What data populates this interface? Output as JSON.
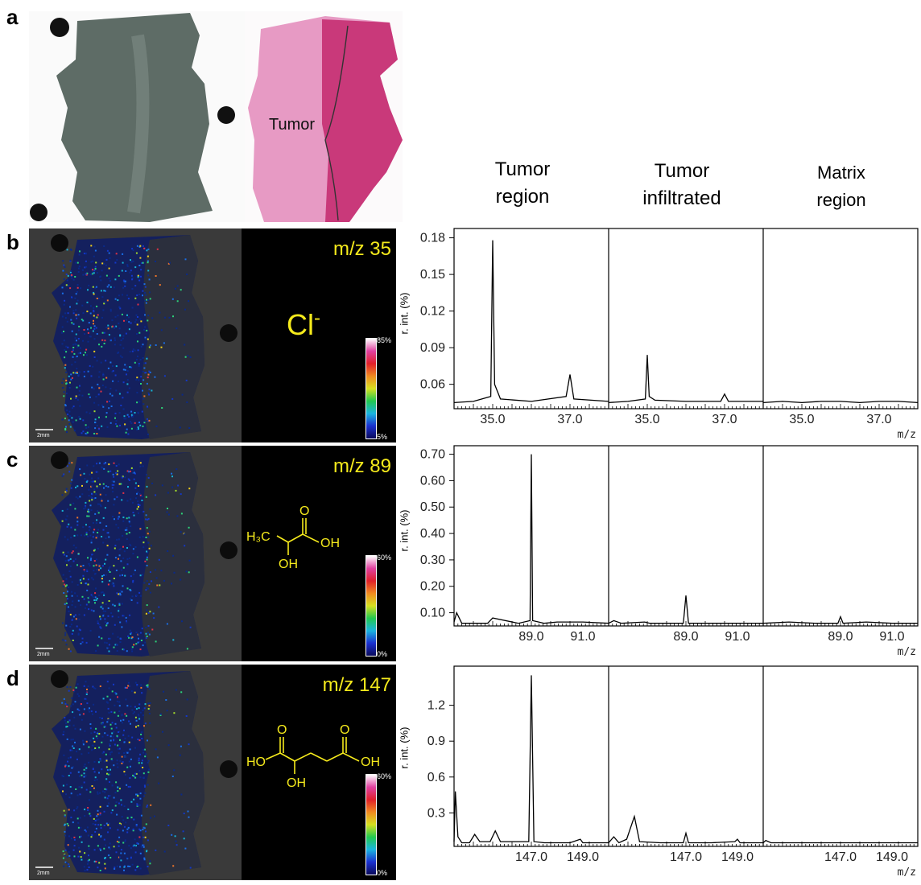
{
  "panel_letters": [
    "a",
    "b",
    "c",
    "d"
  ],
  "tissue_label": "Tumor",
  "column_headers": [
    {
      "line1": "Tumor",
      "line2": "region"
    },
    {
      "line1": "Tumor",
      "line2": "infiltrated"
    },
    {
      "line1": "Matrix",
      "line2": "region"
    }
  ],
  "y_axis_label": "r. int. (%)",
  "x_axis_unit": "m/z",
  "scale_bar_label": "2mm",
  "ions": [
    {
      "mz_label": "m/z 35",
      "formula_main": "Cl",
      "formula_sup": "-",
      "cbar_max": "85%",
      "cbar_min": "5%"
    },
    {
      "mz_label": "m/z 89",
      "cbar_max": "60%",
      "cbar_min": "0%",
      "structure_labels": {
        "ch3": "H₃C",
        "oh1": "OH",
        "oh2": "OH",
        "o": "O"
      }
    },
    {
      "mz_label": "m/z 147",
      "cbar_max": "60%",
      "cbar_min": "0%",
      "structure_labels": {
        "ho": "HO",
        "oh_left": "OH",
        "oh_right": "OH",
        "o_left": "O",
        "o_right": "O"
      }
    }
  ],
  "chart_data": [
    {
      "type": "line",
      "title": "",
      "xlabel": "m/z",
      "ylabel": "r. int. (%)",
      "ylim": [
        0.04,
        0.185
      ],
      "xlim": [
        34.0,
        38.0
      ],
      "yticks": [
        "0.06",
        "0.09",
        "0.12",
        "0.15",
        "0.18"
      ],
      "xticks": [
        "35.0",
        "37.0"
      ],
      "series": [
        {
          "x": [
            34.0,
            34.5,
            34.95,
            35.0,
            35.05,
            35.2,
            36.0,
            36.9,
            37.0,
            37.1,
            38.0
          ],
          "values": [
            0.045,
            0.046,
            0.05,
            0.178,
            0.06,
            0.048,
            0.046,
            0.05,
            0.068,
            0.048,
            0.046
          ]
        },
        {
          "x": [
            34.0,
            34.5,
            34.95,
            35.0,
            35.05,
            35.2,
            36.0,
            36.9,
            37.0,
            37.1,
            38.0
          ],
          "values": [
            0.045,
            0.046,
            0.048,
            0.084,
            0.05,
            0.047,
            0.046,
            0.046,
            0.052,
            0.046,
            0.046
          ]
        },
        {
          "x": [
            34.0,
            34.5,
            35.0,
            35.5,
            36.0,
            36.5,
            37.0,
            37.5,
            38.0
          ],
          "values": [
            0.045,
            0.046,
            0.045,
            0.046,
            0.046,
            0.045,
            0.046,
            0.046,
            0.045
          ]
        }
      ]
    },
    {
      "type": "line",
      "title": "",
      "xlabel": "m/z",
      "ylabel": "r. int. (%)",
      "ylim": [
        0.05,
        0.72
      ],
      "xlim": [
        86.0,
        92.0
      ],
      "yticks": [
        "0.10",
        "0.20",
        "0.30",
        "0.40",
        "0.50",
        "0.60",
        "0.70"
      ],
      "xticks": [
        "89.0",
        "91.0"
      ],
      "series": [
        {
          "x": [
            86.0,
            86.1,
            86.3,
            87.0,
            87.3,
            87.5,
            88.5,
            88.95,
            89.0,
            89.05,
            89.5,
            90.0,
            91.0,
            92.0
          ],
          "values": [
            0.065,
            0.1,
            0.06,
            0.06,
            0.06,
            0.08,
            0.06,
            0.07,
            0.7,
            0.07,
            0.06,
            0.065,
            0.065,
            0.06
          ]
        },
        {
          "x": [
            86.0,
            86.2,
            86.5,
            87.4,
            87.6,
            88.9,
            89.0,
            89.1,
            90.0,
            91.0,
            92.0
          ],
          "values": [
            0.06,
            0.07,
            0.06,
            0.065,
            0.06,
            0.06,
            0.165,
            0.06,
            0.06,
            0.06,
            0.06
          ]
        },
        {
          "x": [
            86.0,
            87.0,
            88.0,
            88.9,
            89.0,
            89.1,
            90.0,
            91.0,
            92.0
          ],
          "values": [
            0.06,
            0.065,
            0.06,
            0.06,
            0.085,
            0.06,
            0.065,
            0.06,
            0.06
          ]
        }
      ]
    },
    {
      "type": "line",
      "title": "",
      "xlabel": "m/z",
      "ylabel": "r. int. (%)",
      "ylim": [
        0.02,
        1.5
      ],
      "xlim": [
        144.0,
        150.0
      ],
      "yticks": [
        "0.3",
        "0.6",
        "0.9",
        "1.2"
      ],
      "xticks": [
        "147.0",
        "149.0"
      ],
      "series": [
        {
          "x": [
            144.0,
            144.05,
            144.15,
            144.3,
            144.6,
            144.8,
            145.0,
            145.4,
            145.6,
            145.8,
            146.9,
            147.0,
            147.1,
            147.5,
            148.5,
            148.9,
            149.0,
            149.2,
            150.0
          ],
          "values": [
            0.06,
            0.48,
            0.1,
            0.05,
            0.05,
            0.12,
            0.06,
            0.06,
            0.15,
            0.06,
            0.06,
            1.45,
            0.06,
            0.05,
            0.05,
            0.08,
            0.05,
            0.05,
            0.05
          ]
        },
        {
          "x": [
            144.0,
            144.2,
            144.4,
            144.7,
            145.0,
            145.2,
            146.0,
            146.9,
            147.0,
            147.1,
            148.0,
            148.9,
            149.0,
            149.1,
            150.0
          ],
          "values": [
            0.05,
            0.1,
            0.05,
            0.08,
            0.27,
            0.06,
            0.05,
            0.05,
            0.13,
            0.05,
            0.05,
            0.06,
            0.08,
            0.05,
            0.05
          ]
        },
        {
          "x": [
            144.0,
            144.1,
            144.3,
            145.0,
            146.0,
            147.0,
            148.0,
            149.0,
            150.0
          ],
          "values": [
            0.05,
            0.07,
            0.05,
            0.05,
            0.05,
            0.05,
            0.05,
            0.05,
            0.05
          ]
        }
      ]
    }
  ]
}
